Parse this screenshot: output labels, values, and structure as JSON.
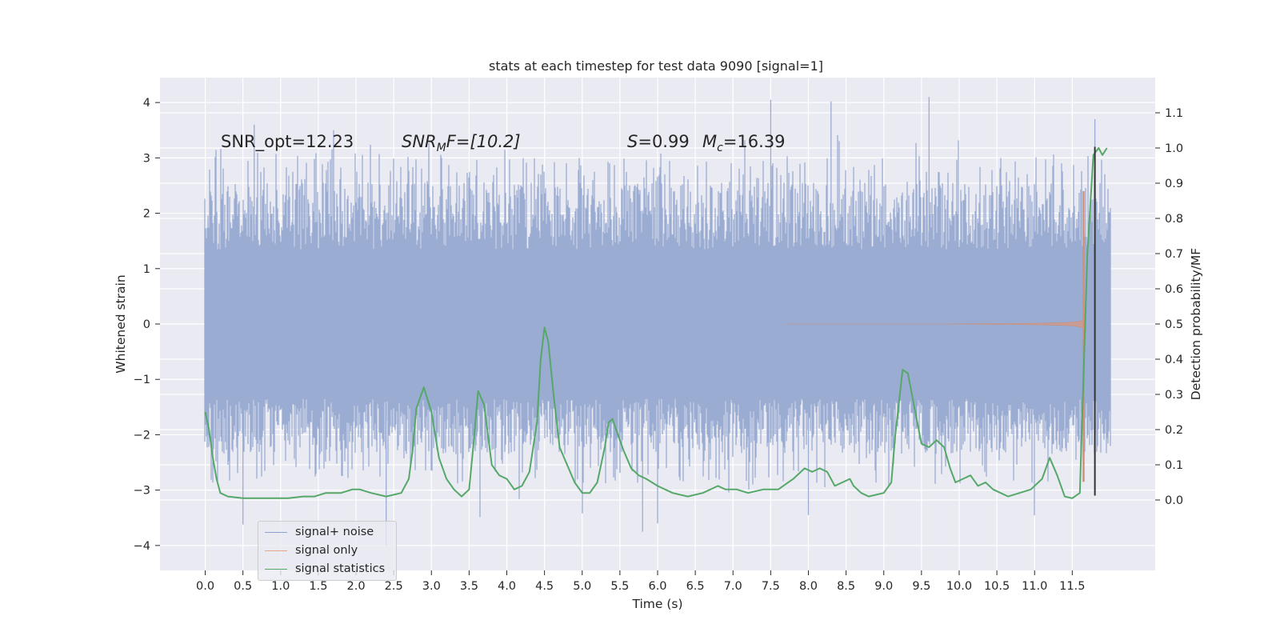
{
  "chart_data": {
    "type": "line",
    "title": "stats at each timestep for test data 9090 [signal=1]",
    "xlabel": "Time (s)",
    "ylabel_left": "Whitened strain",
    "ylabel_right": "Detection probability/MF",
    "xlim": [
      -0.6,
      12.6
    ],
    "ylim_left": [
      -4.45,
      4.45
    ],
    "ylim_right": [
      -0.2,
      1.2
    ],
    "grid": true,
    "x_ticks": [
      "0.0",
      "0.5",
      "1.0",
      "1.5",
      "2.0",
      "2.5",
      "3.0",
      "3.5",
      "4.0",
      "4.5",
      "5.0",
      "5.5",
      "6.0",
      "6.5",
      "7.0",
      "7.5",
      "8.0",
      "8.5",
      "9.0",
      "9.5",
      "10.0",
      "10.5",
      "11.0",
      "11.5"
    ],
    "y_ticks_left": [
      "−4",
      "−3",
      "−2",
      "−1",
      "0",
      "1",
      "2",
      "3",
      "4"
    ],
    "y_ticks_right": [
      "0.0",
      "0.1",
      "0.2",
      "0.3",
      "0.4",
      "0.5",
      "0.6",
      "0.7",
      "0.8",
      "0.9",
      "1.0",
      "1.1"
    ],
    "annotations": {
      "snr_opt": "SNR_opt=12.23",
      "snr_mf_sym": "SNR",
      "snr_mf_sub": "M",
      "snr_mf_tail": "F=[10.2]",
      "s_sym": "S",
      "s_val": "=0.99",
      "mc_sym": "M",
      "mc_sub": "c",
      "mc_val": "=16.39"
    },
    "legend_position": "lower-left",
    "series": [
      {
        "name": "signal+ noise",
        "color": "#4c72b0",
        "style": "dense noise trace",
        "envelope": {
          "core_amplitude": 1.3,
          "typical_peak": [
            -2.7,
            3.0
          ],
          "max_peak": 4.1,
          "min_peak": -4.0,
          "time_range": [
            0.0,
            12.0
          ]
        }
      },
      {
        "name": "signal only",
        "color": "#dd8452",
        "style": "chirp",
        "start_time": 7.7,
        "merger_time": 11.68,
        "peak_amplitude": [
          -2.85,
          2.4
        ]
      },
      {
        "name": "signal statistics",
        "color": "#55a868",
        "axis": "right",
        "x": [
          0.0,
          0.05,
          0.1,
          0.15,
          0.2,
          0.3,
          0.5,
          0.7,
          0.9,
          1.1,
          1.3,
          1.45,
          1.6,
          1.8,
          1.95,
          2.05,
          2.2,
          2.4,
          2.6,
          2.7,
          2.75,
          2.8,
          2.9,
          3.0,
          3.1,
          3.2,
          3.3,
          3.4,
          3.5,
          3.55,
          3.62,
          3.7,
          3.8,
          3.9,
          4.0,
          4.1,
          4.2,
          4.3,
          4.4,
          4.45,
          4.5,
          4.55,
          4.62,
          4.7,
          4.8,
          4.9,
          5.0,
          5.1,
          5.2,
          5.3,
          5.35,
          5.4,
          5.45,
          5.55,
          5.65,
          5.75,
          5.85,
          6.0,
          6.2,
          6.4,
          6.6,
          6.8,
          6.9,
          7.05,
          7.2,
          7.4,
          7.6,
          7.8,
          7.95,
          8.05,
          8.15,
          8.25,
          8.35,
          8.45,
          8.55,
          8.6,
          8.7,
          8.8,
          9.0,
          9.1,
          9.15,
          9.25,
          9.32,
          9.4,
          9.5,
          9.6,
          9.7,
          9.8,
          9.88,
          9.95,
          10.05,
          10.15,
          10.25,
          10.35,
          10.45,
          10.55,
          10.65,
          10.8,
          10.95,
          11.1,
          11.2,
          11.3,
          11.4,
          11.5,
          11.6,
          11.7,
          11.78,
          11.85,
          11.9,
          11.96
        ],
        "values": [
          0.25,
          0.2,
          0.12,
          0.06,
          0.02,
          0.01,
          0.005,
          0.005,
          0.005,
          0.005,
          0.01,
          0.01,
          0.02,
          0.02,
          0.03,
          0.03,
          0.02,
          0.01,
          0.02,
          0.06,
          0.14,
          0.26,
          0.32,
          0.25,
          0.12,
          0.06,
          0.03,
          0.01,
          0.03,
          0.14,
          0.31,
          0.27,
          0.1,
          0.07,
          0.06,
          0.03,
          0.04,
          0.08,
          0.22,
          0.4,
          0.49,
          0.45,
          0.3,
          0.15,
          0.1,
          0.05,
          0.02,
          0.02,
          0.05,
          0.15,
          0.22,
          0.23,
          0.2,
          0.14,
          0.09,
          0.07,
          0.06,
          0.04,
          0.02,
          0.01,
          0.02,
          0.04,
          0.03,
          0.03,
          0.02,
          0.03,
          0.03,
          0.06,
          0.09,
          0.08,
          0.09,
          0.08,
          0.04,
          0.05,
          0.06,
          0.04,
          0.02,
          0.01,
          0.02,
          0.05,
          0.18,
          0.37,
          0.36,
          0.27,
          0.16,
          0.15,
          0.17,
          0.15,
          0.09,
          0.05,
          0.06,
          0.07,
          0.04,
          0.05,
          0.03,
          0.02,
          0.01,
          0.02,
          0.03,
          0.06,
          0.12,
          0.07,
          0.01,
          0.005,
          0.02,
          0.7,
          0.98,
          1.0,
          0.98,
          1.0
        ]
      }
    ],
    "vertical_marker": {
      "x": 11.8,
      "y_range": [
        -3.1,
        3.2
      ],
      "color": "#333333"
    }
  },
  "legend": {
    "items": [
      {
        "label": "signal+ noise",
        "color": "#4c72b0"
      },
      {
        "label": "signal only",
        "color": "#dd8452"
      },
      {
        "label": "signal statistics",
        "color": "#55a868"
      }
    ]
  }
}
